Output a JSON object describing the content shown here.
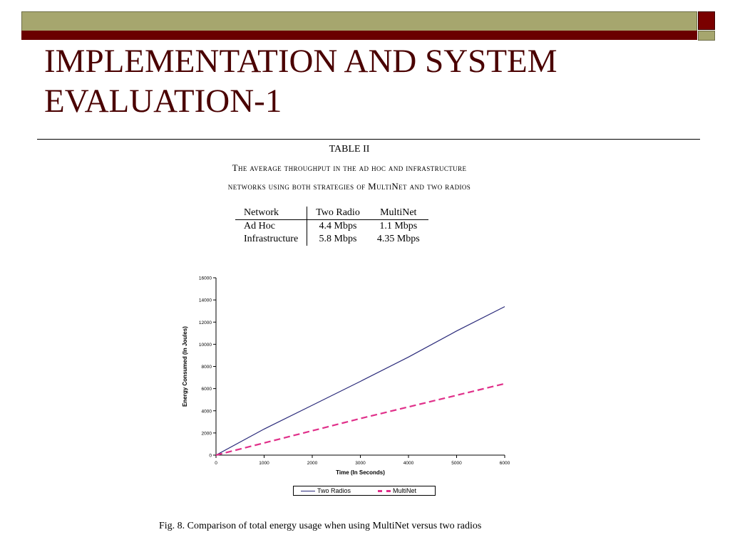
{
  "slide": {
    "title": "IMPLEMENTATION AND SYSTEM EVALUATION-1"
  },
  "table": {
    "label": "TABLE II",
    "caption_line1": "The average throughput in the ad hoc and infrastructure",
    "caption_line2": "networks using both strategies of MultiNet and two radios",
    "headers": [
      "Network",
      "Two Radio",
      "MultiNet"
    ],
    "rows": [
      [
        "Ad Hoc",
        "4.4 Mbps",
        "1.1 Mbps"
      ],
      [
        "Infrastructure",
        "5.8 Mbps",
        "4.35 Mbps"
      ]
    ]
  },
  "chart_data": {
    "type": "line",
    "title": "",
    "xlabel": "Time (In Seconds)",
    "ylabel": "Energy Consumed (In Joules)",
    "xlim": [
      0,
      6000
    ],
    "ylim": [
      0,
      16000
    ],
    "x_ticks": [
      "0",
      "1000",
      "2000",
      "3000",
      "4000",
      "5000",
      "6000"
    ],
    "y_ticks": [
      "0",
      "2000",
      "4000",
      "6000",
      "8000",
      "10000",
      "12000",
      "14000",
      "16000"
    ],
    "grid": false,
    "legend": "bottom",
    "series": [
      {
        "name": "Two Radios",
        "color": "#2a2a7a",
        "style": "solid",
        "x": [
          0,
          1000,
          2000,
          3000,
          4000,
          5000,
          6000
        ],
        "y": [
          0,
          2350,
          4500,
          6650,
          8850,
          11200,
          13400
        ]
      },
      {
        "name": "MultiNet",
        "color": "#e0308a",
        "style": "dashed",
        "x": [
          0,
          1000,
          2000,
          3000,
          4000,
          5000,
          6000
        ],
        "y": [
          0,
          1100,
          2200,
          3300,
          4350,
          5400,
          6450
        ]
      }
    ]
  },
  "figure": {
    "caption": "Fig. 8.   Comparison of total energy usage when using MultiNet versus two radios"
  }
}
